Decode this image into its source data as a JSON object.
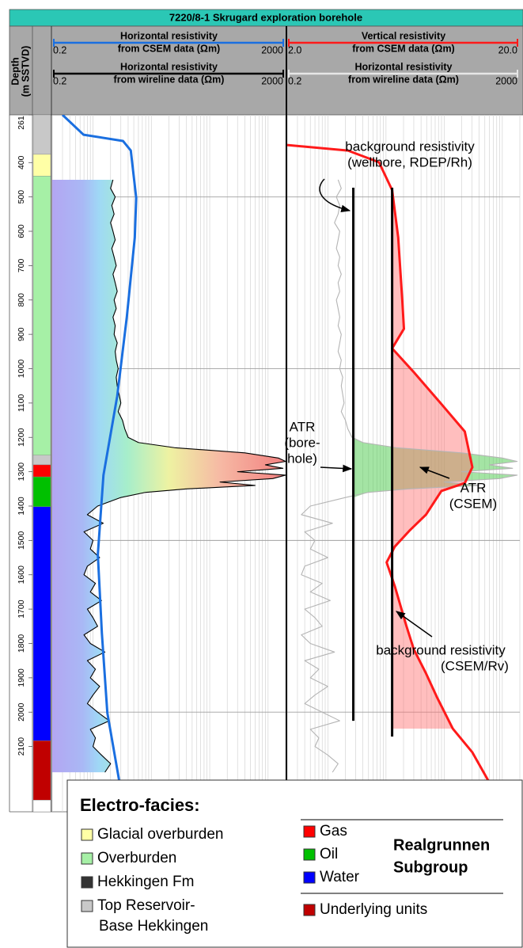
{
  "chart_data": {
    "type": "well-log",
    "title": "7220/8-1 Skrugard exploration borehole",
    "ylabel": [
      "Depth",
      "(m SSTVD)"
    ],
    "ylim": [
      261,
      2290
    ],
    "yticks": [
      261,
      400,
      500,
      600,
      700,
      800,
      900,
      1000,
      1100,
      1200,
      1300,
      1400,
      1500,
      1600,
      1700,
      1800,
      1900,
      2000,
      2100
    ],
    "ygrid": [
      500,
      1000,
      1500,
      2000
    ],
    "log_x": true,
    "facies": [
      {
        "top": 261,
        "base": 376,
        "color": "#c8c8c8"
      },
      {
        "top": 376,
        "base": 439,
        "color": "#ffffa6"
      },
      {
        "top": 439,
        "base": 1252,
        "color": "#a6f0a6"
      },
      {
        "top": 1252,
        "base": 1280,
        "color": "#c8c8c8"
      },
      {
        "top": 1280,
        "base": 1315,
        "color": "#ff0000"
      },
      {
        "top": 1315,
        "base": 1402,
        "color": "#00c000"
      },
      {
        "top": 1402,
        "base": 2083,
        "color": "#0000ff"
      },
      {
        "top": 2083,
        "base": 2256,
        "color": "#c00000"
      },
      {
        "top": 2256,
        "base": 2290,
        "color": "#ffffff"
      }
    ],
    "tracks": [
      {
        "xlabel": [
          "Horizontal resistivity",
          "from CSEM data (Ωm)"
        ],
        "xlim": [
          0.2,
          2000
        ],
        "xticks": [
          0.2,
          2000
        ],
        "xcolor": "#1a6fe0",
        "x2label": [
          "Horizontal resistivity",
          "from wireline data (Ωm)"
        ],
        "x2lim": [
          0.2,
          2000
        ],
        "x2ticks": [
          0.2,
          2000
        ],
        "x2color": "#000000",
        "x2grid": [
          0.2,
          0.3,
          0.4,
          0.5,
          0.6,
          0.7,
          0.8,
          0.9,
          1,
          2,
          3,
          4,
          5,
          6,
          7,
          8,
          9,
          10,
          20,
          30,
          40,
          50,
          60,
          70,
          80,
          90,
          100,
          200,
          300,
          400,
          500,
          600,
          700,
          800,
          900,
          1000,
          2000
        ],
        "series": [
          {
            "axis": "x2",
            "color": "#000000",
            "area": true,
            "depth": [
              450,
              475,
              500,
              525,
              550,
              575,
              600,
              625,
              650,
              675,
              700,
              725,
              750,
              775,
              800,
              825,
              850,
              875,
              900,
              925,
              950,
              975,
              1000,
              1025,
              1050,
              1075,
              1100,
              1125,
              1150,
              1175,
              1200,
              1215,
              1230,
              1245,
              1260,
              1270,
              1280,
              1290,
              1300,
              1310,
              1320,
              1330,
              1340,
              1350,
              1360,
              1375,
              1400,
              1425,
              1450,
              1475,
              1500,
              1525,
              1550,
              1575,
              1600,
              1625,
              1650,
              1675,
              1700,
              1725,
              1750,
              1775,
              1800,
              1825,
              1850,
              1875,
              1900,
              1925,
              1950,
              1975,
              2000,
              2025,
              2050,
              2075,
              2100,
              2125,
              2150,
              2175
            ],
            "values": [
              2.2,
              2.0,
              2.4,
              2.1,
              2.3,
              2.0,
              2.2,
              2.4,
              2.1,
              2.3,
              2.5,
              2.2,
              2.4,
              2.6,
              2.3,
              2.5,
              2.2,
              2.4,
              2.3,
              2.6,
              2.4,
              2.5,
              2.7,
              2.5,
              2.6,
              2.8,
              3.0,
              2.7,
              3.2,
              3.5,
              4.0,
              6,
              25,
              400,
              1500,
              2000,
              900,
              1800,
              300,
              2000,
              1200,
              150,
              600,
              40,
              8,
              3,
              1.2,
              0.8,
              1.5,
              0.7,
              1.0,
              0.9,
              1.3,
              0.8,
              0.7,
              1.1,
              0.9,
              1.4,
              0.8,
              1.0,
              1.2,
              0.7,
              0.9,
              1.6,
              0.8,
              1.1,
              0.9,
              1.3,
              1.0,
              0.8,
              1.2,
              1.9,
              0.9,
              1.1,
              1.0,
              1.4,
              2.0,
              1.6
            ]
          },
          {
            "axis": "x",
            "color": "#1a6fe0",
            "depth": [
              261,
              319,
              337,
              365,
              503,
              618,
              849,
              1080,
              1310,
              1541,
              1771,
              2002,
              2198
            ],
            "values": [
              0.3,
              0.69,
              3.26,
              4.44,
              5.5,
              5.2,
              3.8,
              2.6,
              1.51,
              1.21,
              1.42,
              1.76,
              2.8
            ]
          }
        ],
        "lines": []
      },
      {
        "xlabel": [
          "Vertical resistivity",
          "from CSEM data (Ωm)"
        ],
        "xlim": [
          2,
          20
        ],
        "xticks": [
          {
            "value": 2,
            "label": "2.0"
          },
          {
            "value": 20,
            "label": "20.0"
          }
        ],
        "xcolor": "#ff1a1a",
        "x2label": [
          "Horizontal resistivity",
          "from wireline data (Ωm)"
        ],
        "x2lim": [
          0.2,
          2000
        ],
        "x2ticks": [
          0.2,
          2000
        ],
        "x2color": "#e6e6e6",
        "x2grid": [
          0.2,
          0.3,
          0.4,
          0.5,
          0.6,
          0.7,
          0.8,
          0.9,
          1,
          2,
          3,
          4,
          5,
          6,
          7,
          8,
          9,
          10,
          20,
          30,
          40,
          50,
          60,
          70,
          80,
          90,
          100,
          200,
          300,
          400,
          500,
          600,
          700,
          800,
          900,
          1000,
          2000
        ],
        "series": [
          {
            "axis": "x2",
            "color": "#b4b4b4",
            "depth": [
              450,
              475,
              500,
              525,
              550,
              575,
              600,
              625,
              650,
              675,
              700,
              725,
              750,
              775,
              800,
              825,
              850,
              875,
              900,
              925,
              950,
              975,
              1000,
              1025,
              1050,
              1075,
              1100,
              1125,
              1150,
              1175,
              1200,
              1215,
              1230,
              1245,
              1260,
              1270,
              1280,
              1290,
              1300,
              1310,
              1320,
              1330,
              1340,
              1350,
              1360,
              1375,
              1400,
              1425,
              1450,
              1475,
              1500,
              1525,
              1550,
              1575,
              1600,
              1625,
              1650,
              1675,
              1700,
              1725,
              1750,
              1775,
              1800,
              1825,
              1850,
              1875,
              1900,
              1925,
              1950,
              1975,
              2000,
              2025,
              2050,
              2075,
              2100,
              2125,
              2150,
              2175
            ],
            "values": [
              1.5,
              1.7,
              1.4,
              1.6,
              1.5,
              1.3,
              1.6,
              1.5,
              1.4,
              1.6,
              1.5,
              1.7,
              1.5,
              1.6,
              1.4,
              1.5,
              1.6,
              1.5,
              1.7,
              1.6,
              1.5,
              1.7,
              1.6,
              1.8,
              1.7,
              1.8,
              1.9,
              1.7,
              2.0,
              2.2,
              2.6,
              4,
              15,
              200,
              1000,
              1800,
              600,
              1500,
              200,
              1800,
              900,
              100,
              400,
              25,
              5,
              2,
              0.5,
              0.35,
              1.2,
              0.4,
              0.6,
              0.5,
              1.0,
              0.4,
              0.35,
              0.8,
              0.5,
              1.1,
              0.4,
              0.6,
              0.8,
              0.35,
              0.5,
              1.3,
              0.4,
              0.7,
              0.5,
              1.0,
              0.6,
              0.4,
              0.8,
              1.6,
              0.5,
              0.7,
              0.6,
              1.0,
              1.5,
              1.2
            ]
          },
          {
            "axis": "x",
            "color": "#ff1a1a",
            "depth": [
              349,
              365,
              399,
              480,
              618,
              803,
              884,
              941,
              1010,
              1103,
              1183,
              1287,
              1333,
              1356,
              1425,
              1472,
              1518,
              1564,
              1633,
              1748,
              1817,
              1887,
              1956,
              2048,
              2117,
              2198
            ],
            "values": [
              2.0,
              3.65,
              4.96,
              5.65,
              6.0,
              6.25,
              6.35,
              5.65,
              7.0,
              9.2,
              11.6,
              12.5,
              11.6,
              9.2,
              7.9,
              6.7,
              5.8,
              5.35,
              5.8,
              6.5,
              7.0,
              7.9,
              8.8,
              10.3,
              12.5,
              14.6
            ]
          }
        ],
        "lines": [
          {
            "axis": "x2",
            "x": 2.74,
            "depth": [
              473,
              2025
            ],
            "color": "#000000",
            "fill": "rgba(90,205,90,0.55)"
          },
          {
            "axis": "x",
            "x": 5.65,
            "depth": [
              473,
              2071
            ],
            "color": "#000000",
            "fill": "rgba(255,110,110,0.45)"
          }
        ]
      }
    ],
    "annotations": [
      {
        "text": [
          "background resistivity",
          "(wellbore, RDEP/Rh)"
        ]
      },
      {
        "text": [
          "ATR",
          "(bore-",
          "hole)"
        ]
      },
      {
        "text": [
          "ATR",
          "(CSEM)"
        ]
      },
      {
        "text": [
          "background resistivity",
          "(CSEM/Rv)"
        ]
      }
    ],
    "legend": {
      "title": "Electro-facies:",
      "items": [
        {
          "name": "Glacial overburden",
          "color": "#ffffa6"
        },
        {
          "name": "Overburden",
          "color": "#a6f0a6"
        },
        {
          "name": "Hekkingen Fm",
          "color": "#333333"
        },
        {
          "name": [
            "Top Reservoir-",
            "Base Hekkingen"
          ],
          "color": "#c8c8c8"
        }
      ],
      "groups": [
        {
          "label": [
            "Realgrunnen",
            "Subgroup"
          ],
          "items": [
            {
              "name": "Gas",
              "color": "#ff0000"
            },
            {
              "name": "Oil",
              "color": "#00c000"
            },
            {
              "name": "Water",
              "color": "#0000ff"
            }
          ]
        },
        {
          "items": [
            {
              "name": "Underlying units",
              "color": "#c00000"
            }
          ]
        }
      ]
    }
  }
}
